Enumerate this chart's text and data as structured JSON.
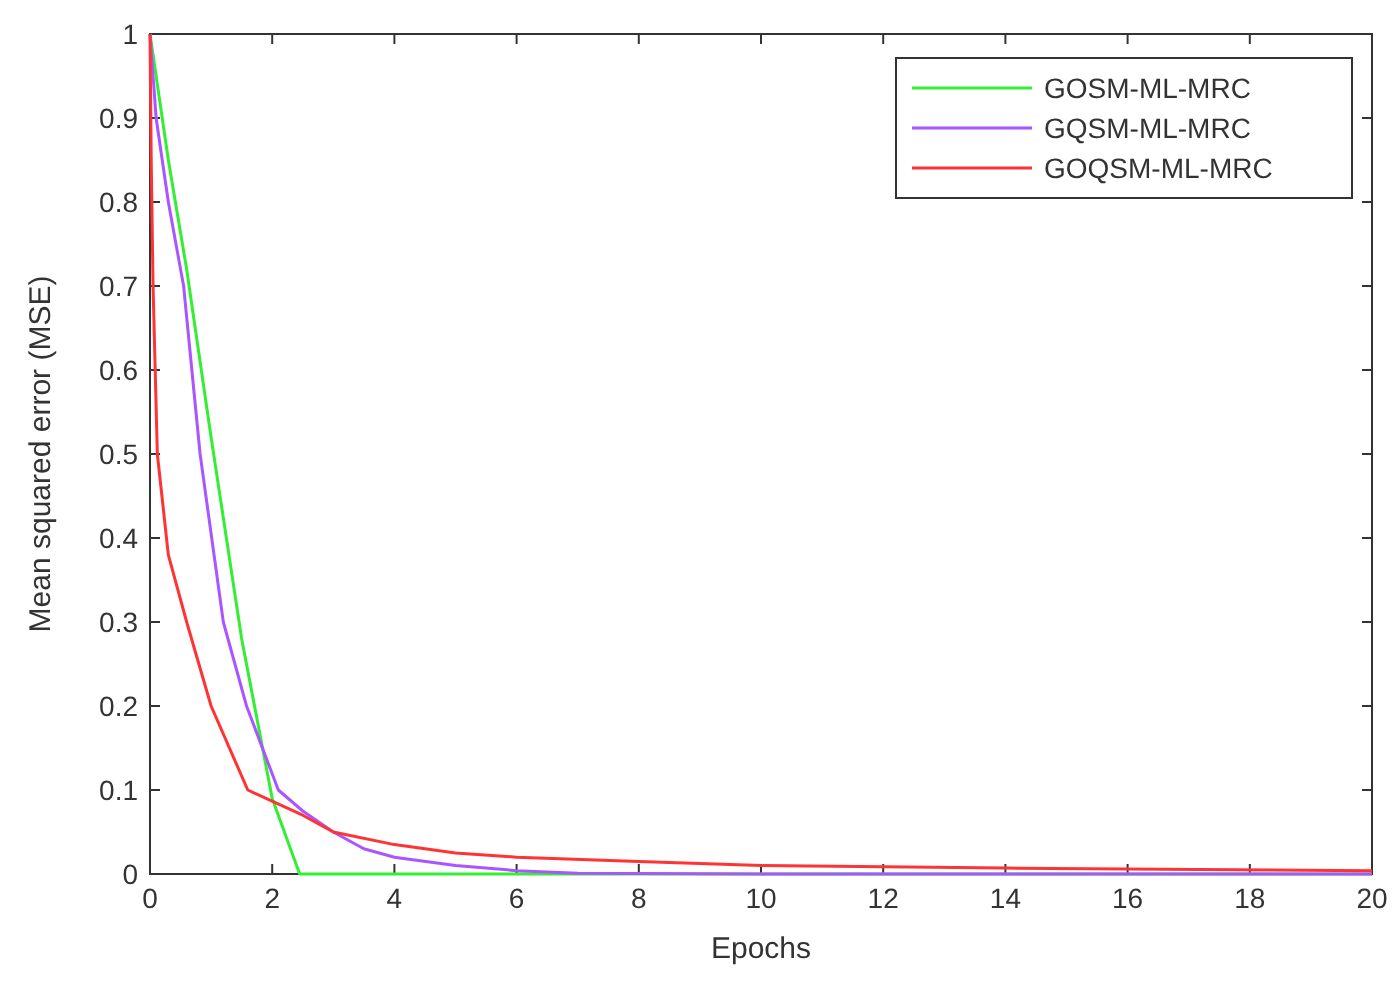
{
  "chart_data": {
    "type": "line",
    "xlabel": "Epochs",
    "ylabel": "Mean squared error (MSE)",
    "xlim": [
      0,
      20
    ],
    "ylim": [
      0,
      1
    ],
    "xticks": [
      0,
      2,
      4,
      6,
      8,
      10,
      12,
      14,
      16,
      18,
      20
    ],
    "yticks": [
      0,
      0.1,
      0.2,
      0.3,
      0.4,
      0.5,
      0.6,
      0.7,
      0.8,
      0.9,
      1
    ],
    "grid": false,
    "legend": "top right",
    "marker": "none",
    "line_style": "solid",
    "series": [
      {
        "name": "GOSM-ML-MRC",
        "color": "#33ee33",
        "x": [
          0,
          0.3,
          0.6,
          1,
          1.5,
          2,
          2.45,
          3,
          5,
          10,
          15,
          20
        ],
        "values": [
          1,
          0.85,
          0.72,
          0.52,
          0.28,
          0.09,
          0,
          0,
          0,
          0,
          0,
          0
        ]
      },
      {
        "name": "GQSM-ML-MRC",
        "color": "#aa55ff",
        "x": [
          0,
          0.1,
          0.3,
          0.55,
          0.82,
          1.2,
          1.58,
          2.1,
          2.5,
          3,
          3.5,
          4,
          5,
          6,
          7,
          10,
          15,
          20
        ],
        "values": [
          1,
          0.9,
          0.8,
          0.7,
          0.5,
          0.3,
          0.2,
          0.1,
          0.075,
          0.05,
          0.03,
          0.02,
          0.01,
          0.004,
          0.001,
          0,
          0,
          0
        ]
      },
      {
        "name": "GOQSM-ML-MRC",
        "color": "#ff3333",
        "x": [
          0,
          0.02,
          0.05,
          0.12,
          0.3,
          0.6,
          1,
          1.6,
          2.5,
          3,
          4,
          5,
          6,
          8,
          10,
          14,
          20
        ],
        "values": [
          1,
          0.85,
          0.7,
          0.5,
          0.38,
          0.3,
          0.2,
          0.1,
          0.07,
          0.05,
          0.035,
          0.025,
          0.02,
          0.015,
          0.01,
          0.007,
          0.004
        ]
      }
    ]
  }
}
